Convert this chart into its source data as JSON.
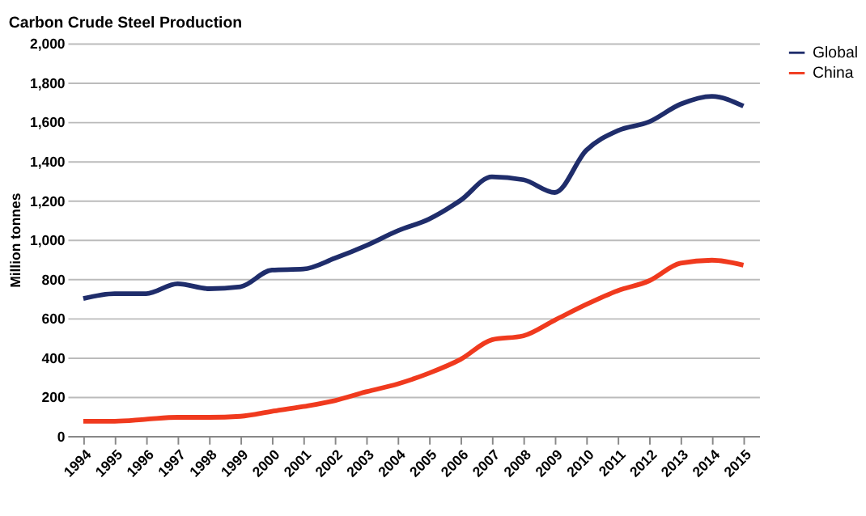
{
  "chart_data": {
    "type": "line",
    "title": "Carbon Crude Steel Production",
    "ylabel": "Million tonnes",
    "categories": [
      "1994",
      "1995",
      "1996",
      "1997",
      "1998",
      "1999",
      "2000",
      "2001",
      "2002",
      "2003",
      "2004",
      "2005",
      "2006",
      "2007",
      "2008",
      "2009",
      "2010",
      "2011",
      "2012",
      "2013",
      "2014",
      "2015"
    ],
    "series": [
      {
        "name": "Global",
        "color": "#1f2d6b",
        "values": [
          700,
          725,
          725,
          775,
          750,
          760,
          845,
          850,
          905,
          970,
          1045,
          1105,
          1200,
          1320,
          1305,
          1240,
          1455,
          1555,
          1600,
          1690,
          1730,
          1680
        ]
      },
      {
        "name": "China",
        "color": "#f03a1e",
        "values": [
          75,
          75,
          85,
          95,
          95,
          100,
          125,
          150,
          180,
          225,
          265,
          320,
          390,
          490,
          510,
          590,
          670,
          740,
          790,
          880,
          895,
          870
        ]
      }
    ],
    "ylim": [
      0,
      2000
    ],
    "yticks": [
      0,
      200,
      400,
      600,
      800,
      {
        "value": 1000,
        "label": "1,000"
      },
      {
        "value": 1200,
        "label": "1,200"
      },
      {
        "value": 1400,
        "label": "1,400"
      },
      {
        "value": 1600,
        "label": "1,600"
      },
      {
        "value": 1800,
        "label": "1,800"
      },
      {
        "value": 2000,
        "label": "2,000"
      }
    ],
    "grid": "y",
    "legend": "right",
    "line_style": "solid",
    "marker": "none"
  }
}
